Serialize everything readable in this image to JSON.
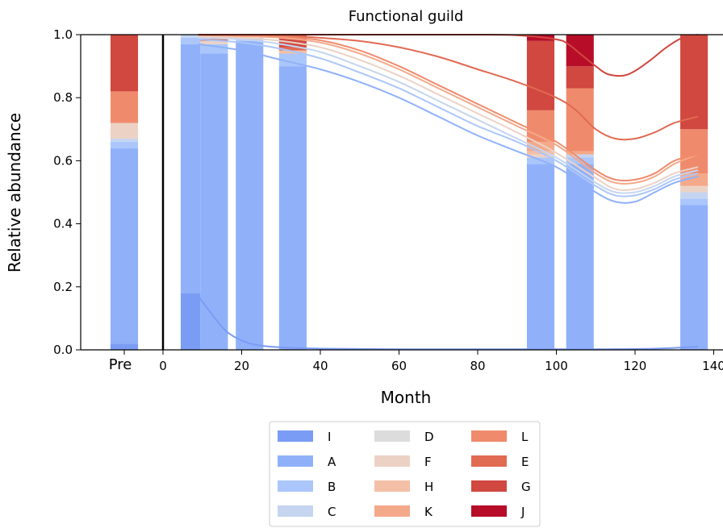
{
  "chart_data": {
    "type": "bar",
    "title": "Functional guild",
    "xlabel": "Month",
    "ylabel": "Relative abundance",
    "xlim": [
      -8,
      141
    ],
    "ylim": [
      0,
      1
    ],
    "xticks": [
      0,
      20,
      40,
      60,
      80,
      100,
      120,
      140
    ],
    "yticks": [
      0.0,
      0.2,
      0.4,
      0.6,
      0.8,
      1.0
    ],
    "ytick_labels": [
      "0.0",
      "0.2",
      "0.4",
      "0.6",
      "0.8",
      "1.0"
    ],
    "pre_label": "Pre",
    "vertical_marker_x": 0,
    "legend_placement": "bottom-center",
    "guild_order": [
      "I",
      "A",
      "B",
      "C",
      "D",
      "F",
      "H",
      "K",
      "L",
      "E",
      "G",
      "J"
    ],
    "guilds": [
      {
        "name": "I",
        "color": "#7a9cf4"
      },
      {
        "name": "A",
        "color": "#90b1fa"
      },
      {
        "name": "B",
        "color": "#abc6fb"
      },
      {
        "name": "C",
        "color": "#c5d5f0"
      },
      {
        "name": "D",
        "color": "#dddcdc"
      },
      {
        "name": "F",
        "color": "#ecd2c5"
      },
      {
        "name": "H",
        "color": "#f3c0a7"
      },
      {
        "name": "K",
        "color": "#f4a98a"
      },
      {
        "name": "L",
        "color": "#ef8b6c"
      },
      {
        "name": "E",
        "color": "#e16a52"
      },
      {
        "name": "G",
        "color": "#d04840"
      },
      {
        "name": "J",
        "color": "#b70d28"
      }
    ],
    "bars": [
      {
        "label": "Pre",
        "x": null,
        "width": 7,
        "values": {
          "I": 0.02,
          "A": 0.62,
          "B": 0.02,
          "C": 0.01,
          "D": 0.0,
          "F": 0.05,
          "H": 0.0,
          "K": 0.0,
          "L": 0.1,
          "E": 0.0,
          "G": 0.18,
          "J": 0.0
        }
      },
      {
        "label": "",
        "x": 7,
        "width": 5,
        "values": {
          "I": 0.18,
          "A": 0.79,
          "B": 0.02,
          "C": 0.01,
          "D": 0.0,
          "F": 0.0,
          "H": 0.0,
          "K": 0.0,
          "L": 0.0,
          "E": 0.0,
          "G": 0.0,
          "J": 0.0
        }
      },
      {
        "label": "",
        "x": 13,
        "width": 7,
        "values": {
          "I": 0.0,
          "A": 0.94,
          "B": 0.03,
          "C": 0.0,
          "D": 0.0,
          "F": 0.01,
          "H": 0.0,
          "K": 0.0,
          "L": 0.0,
          "E": 0.01,
          "G": 0.0,
          "J": 0.0
        }
      },
      {
        "label": "",
        "x": 22,
        "width": 7,
        "values": {
          "I": 0.0,
          "A": 0.98,
          "B": 0.01,
          "C": 0.0,
          "D": 0.0,
          "F": 0.0,
          "H": 0.0,
          "K": 0.0,
          "L": 0.0,
          "E": 0.0,
          "G": 0.0,
          "J": 0.0
        }
      },
      {
        "label": "",
        "x": 33,
        "width": 7,
        "values": {
          "I": 0.0,
          "A": 0.9,
          "B": 0.04,
          "C": 0.0,
          "D": 0.0,
          "F": 0.0,
          "H": 0.01,
          "K": 0.0,
          "L": 0.0,
          "E": 0.01,
          "G": 0.04,
          "J": 0.0
        }
      },
      {
        "label": "",
        "x": 96,
        "width": 7,
        "values": {
          "I": 0.0,
          "A": 0.59,
          "B": 0.02,
          "C": 0.0,
          "D": 0.0,
          "F": 0.01,
          "H": 0.01,
          "K": 0.03,
          "L": 0.1,
          "E": 0.0,
          "G": 0.22,
          "J": 0.02
        }
      },
      {
        "label": "",
        "x": 106,
        "width": 7,
        "values": {
          "I": 0.0,
          "A": 0.59,
          "B": 0.02,
          "C": 0.01,
          "D": 0.0,
          "F": 0.0,
          "H": 0.0,
          "K": 0.01,
          "L": 0.2,
          "E": 0.0,
          "G": 0.07,
          "J": 0.1
        }
      },
      {
        "label": "",
        "x": 135,
        "width": 7,
        "values": {
          "I": 0.0,
          "A": 0.46,
          "B": 0.02,
          "C": 0.02,
          "D": 0.0,
          "F": 0.02,
          "H": 0.0,
          "K": 0.04,
          "L": 0.14,
          "E": 0.0,
          "G": 0.3,
          "J": 0.0
        }
      }
    ],
    "curves": [
      {
        "guild": "I",
        "x": [
          9,
          12,
          16,
          20,
          24,
          30,
          40,
          60,
          90,
          110,
          125,
          136
        ],
        "y": [
          0.17,
          0.12,
          0.06,
          0.03,
          0.015,
          0.008,
          0.004,
          0.002,
          0.002,
          0.002,
          0.004,
          0.01
        ]
      },
      {
        "guild": "A",
        "x": [
          9,
          20,
          30,
          40,
          50,
          60,
          70,
          80,
          90,
          100,
          110,
          115,
          120,
          125,
          130,
          136
        ],
        "y": [
          0.97,
          0.95,
          0.92,
          0.89,
          0.85,
          0.8,
          0.74,
          0.68,
          0.63,
          0.58,
          0.5,
          0.47,
          0.47,
          0.5,
          0.53,
          0.55
        ]
      },
      {
        "guild": "B",
        "x": [
          9,
          20,
          30,
          40,
          50,
          60,
          70,
          80,
          90,
          100,
          110,
          115,
          120,
          125,
          130,
          136
        ],
        "y": [
          0.985,
          0.975,
          0.955,
          0.925,
          0.88,
          0.83,
          0.77,
          0.71,
          0.66,
          0.6,
          0.52,
          0.49,
          0.49,
          0.51,
          0.54,
          0.56
        ]
      },
      {
        "guild": "C",
        "x": [
          9,
          20,
          30,
          40,
          50,
          60,
          70,
          80,
          90,
          100,
          110,
          115,
          120,
          125,
          130,
          136
        ],
        "y": [
          0.99,
          0.985,
          0.97,
          0.945,
          0.9,
          0.85,
          0.79,
          0.73,
          0.67,
          0.61,
          0.53,
          0.5,
          0.5,
          0.52,
          0.55,
          0.57
        ]
      },
      {
        "guild": "F",
        "x": [
          9,
          20,
          30,
          40,
          50,
          60,
          70,
          80,
          90,
          100,
          110,
          115,
          120,
          125,
          130,
          136
        ],
        "y": [
          0.995,
          0.99,
          0.98,
          0.96,
          0.92,
          0.87,
          0.81,
          0.75,
          0.69,
          0.625,
          0.545,
          0.51,
          0.51,
          0.53,
          0.56,
          0.58
        ]
      },
      {
        "guild": "K",
        "x": [
          9,
          20,
          30,
          40,
          50,
          60,
          70,
          80,
          90,
          100,
          110,
          115,
          120,
          125,
          130,
          136
        ],
        "y": [
          0.998,
          0.995,
          0.99,
          0.975,
          0.94,
          0.89,
          0.83,
          0.77,
          0.71,
          0.65,
          0.56,
          0.53,
          0.53,
          0.55,
          0.59,
          0.62
        ]
      },
      {
        "guild": "L",
        "x": [
          9,
          20,
          30,
          40,
          50,
          60,
          70,
          80,
          90,
          100,
          110,
          115,
          120,
          125,
          130,
          136
        ],
        "y": [
          0.999,
          0.998,
          0.994,
          0.982,
          0.95,
          0.9,
          0.84,
          0.78,
          0.72,
          0.66,
          0.57,
          0.54,
          0.54,
          0.56,
          0.6,
          0.62
        ]
      },
      {
        "guild": "E",
        "x": [
          9,
          20,
          30,
          40,
          50,
          60,
          70,
          80,
          90,
          100,
          105,
          110,
          115,
          120,
          125,
          130,
          136
        ],
        "y": [
          1.0,
          1.0,
          0.998,
          0.99,
          0.98,
          0.96,
          0.93,
          0.89,
          0.85,
          0.8,
          0.76,
          0.7,
          0.67,
          0.67,
          0.69,
          0.72,
          0.74
        ]
      },
      {
        "guild": "G",
        "x": [
          9,
          30,
          50,
          70,
          80,
          90,
          100,
          103,
          106,
          110,
          113,
          117,
          120,
          124,
          128,
          132,
          136
        ],
        "y": [
          1.0,
          1.0,
          1.0,
          1.0,
          1.0,
          0.998,
          0.985,
          0.97,
          0.94,
          0.9,
          0.875,
          0.87,
          0.885,
          0.92,
          0.96,
          0.99,
          1.0
        ]
      }
    ]
  }
}
